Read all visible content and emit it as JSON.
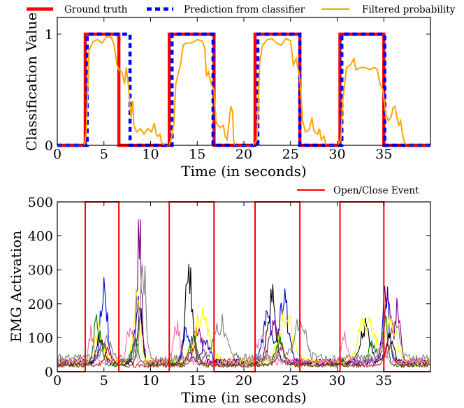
{
  "chart_data": [
    {
      "type": "line",
      "title": "",
      "xlabel": "Time (in seconds)",
      "ylabel": "Classification Value",
      "xlim": [
        0,
        40
      ],
      "ylim": [
        0,
        1.15
      ],
      "xticks": [
        0,
        5,
        10,
        15,
        20,
        25,
        30,
        35
      ],
      "yticks": [
        0,
        1
      ],
      "grid": false,
      "legend_placement": "top, above plot, horizontal",
      "series": [
        {
          "name": "Ground truth",
          "color": "#ff0000",
          "style": "solid-thick",
          "points": [
            [
              0,
              0
            ],
            [
              3.0,
              0
            ],
            [
              3.0,
              1
            ],
            [
              6.6,
              1
            ],
            [
              6.6,
              0
            ],
            [
              12.0,
              0
            ],
            [
              12.0,
              1
            ],
            [
              16.8,
              1
            ],
            [
              16.8,
              0
            ],
            [
              21.2,
              0
            ],
            [
              21.2,
              1
            ],
            [
              26.0,
              1
            ],
            [
              26.0,
              0
            ],
            [
              30.3,
              0
            ],
            [
              30.3,
              1
            ],
            [
              35.0,
              1
            ],
            [
              35.0,
              0
            ],
            [
              40,
              0
            ]
          ]
        },
        {
          "name": "Prediction from classifier",
          "color": "#0000ff",
          "style": "dashed-thick",
          "points": [
            [
              0,
              0
            ],
            [
              3.2,
              0
            ],
            [
              3.2,
              1
            ],
            [
              7.8,
              1
            ],
            [
              7.8,
              0
            ],
            [
              12.3,
              0
            ],
            [
              12.3,
              1
            ],
            [
              16.7,
              1
            ],
            [
              16.7,
              0
            ],
            [
              21.5,
              0
            ],
            [
              21.5,
              1
            ],
            [
              26.0,
              1
            ],
            [
              26.0,
              0
            ],
            [
              30.5,
              0
            ],
            [
              30.5,
              1
            ],
            [
              35.1,
              1
            ],
            [
              35.1,
              0
            ],
            [
              40,
              0
            ]
          ]
        },
        {
          "name": "Filtered probability",
          "color": "#ffa500",
          "style": "solid",
          "points": [
            [
              0,
              0
            ],
            [
              2.9,
              0
            ],
            [
              3.1,
              0.1
            ],
            [
              3.4,
              0.85
            ],
            [
              3.8,
              0.93
            ],
            [
              4.3,
              0.95
            ],
            [
              4.8,
              0.92
            ],
            [
              5.3,
              0.98
            ],
            [
              5.8,
              0.97
            ],
            [
              6.1,
              0.9
            ],
            [
              6.4,
              0.72
            ],
            [
              6.6,
              0.68
            ],
            [
              6.9,
              0.66
            ],
            [
              7.1,
              0.6
            ],
            [
              7.2,
              0.55
            ],
            [
              7.4,
              0.7
            ],
            [
              7.6,
              0.55
            ],
            [
              7.9,
              0.25
            ],
            [
              8.1,
              0.4
            ],
            [
              8.2,
              0.18
            ],
            [
              8.5,
              0.12
            ],
            [
              8.9,
              0.15
            ],
            [
              9.3,
              0.1
            ],
            [
              9.7,
              0.15
            ],
            [
              10.1,
              0.12
            ],
            [
              10.4,
              0.2
            ],
            [
              10.6,
              0.1
            ],
            [
              10.8,
              0.08
            ],
            [
              11.0,
              0.1
            ],
            [
              11.2,
              0.02
            ],
            [
              11.5,
              0
            ],
            [
              12.0,
              0
            ],
            [
              12.2,
              0.05
            ],
            [
              12.5,
              0.2
            ],
            [
              12.7,
              0.55
            ],
            [
              13.0,
              0.66
            ],
            [
              13.2,
              0.72
            ],
            [
              13.5,
              0.9
            ],
            [
              13.8,
              0.92
            ],
            [
              14.4,
              0.92
            ],
            [
              15.0,
              0.95
            ],
            [
              15.5,
              0.94
            ],
            [
              15.8,
              0.88
            ],
            [
              16.0,
              0.62
            ],
            [
              16.2,
              0.66
            ],
            [
              16.5,
              0.55
            ],
            [
              16.8,
              0.5
            ],
            [
              17.0,
              0.22
            ],
            [
              17.2,
              0.18
            ],
            [
              17.5,
              0.16
            ],
            [
              17.8,
              0.18
            ],
            [
              18.0,
              0.08
            ],
            [
              18.2,
              0.05
            ],
            [
              18.4,
              0.2
            ],
            [
              18.6,
              0.35
            ],
            [
              18.8,
              0.3
            ],
            [
              18.9,
              0.05
            ],
            [
              19.0,
              0
            ],
            [
              21.0,
              0
            ],
            [
              21.4,
              0.05
            ],
            [
              21.7,
              0.75
            ],
            [
              22.0,
              0.9
            ],
            [
              22.5,
              0.95
            ],
            [
              23.0,
              0.96
            ],
            [
              23.5,
              0.92
            ],
            [
              24.0,
              0.9
            ],
            [
              24.5,
              0.96
            ],
            [
              25.0,
              0.94
            ],
            [
              25.3,
              0.72
            ],
            [
              25.6,
              0.78
            ],
            [
              26.0,
              0.6
            ],
            [
              26.3,
              0.22
            ],
            [
              26.6,
              0.12
            ],
            [
              27.0,
              0.14
            ],
            [
              27.3,
              0.25
            ],
            [
              27.5,
              0.13
            ],
            [
              27.9,
              0.1
            ],
            [
              28.1,
              0.15
            ],
            [
              28.3,
              0.05
            ],
            [
              28.6,
              0.08
            ],
            [
              28.8,
              0
            ],
            [
              29.0,
              0
            ],
            [
              30.0,
              0
            ],
            [
              30.4,
              0.05
            ],
            [
              30.6,
              0.4
            ],
            [
              31.0,
              0.7
            ],
            [
              31.4,
              0.72
            ],
            [
              31.8,
              0.78
            ],
            [
              32.0,
              0.68
            ],
            [
              32.5,
              0.7
            ],
            [
              33.0,
              0.7
            ],
            [
              33.5,
              0.68
            ],
            [
              34.0,
              0.7
            ],
            [
              34.3,
              0.68
            ],
            [
              34.6,
              0.55
            ],
            [
              34.9,
              0.5
            ],
            [
              35.2,
              0.28
            ],
            [
              35.5,
              0.22
            ],
            [
              35.8,
              0.26
            ],
            [
              36.0,
              0.34
            ],
            [
              36.2,
              0.35
            ],
            [
              36.4,
              0.25
            ],
            [
              36.6,
              0.18
            ],
            [
              36.8,
              0.22
            ],
            [
              37.0,
              0.1
            ],
            [
              37.2,
              0.03
            ],
            [
              37.4,
              0
            ],
            [
              40,
              0
            ]
          ]
        }
      ]
    },
    {
      "type": "line",
      "title": "",
      "xlabel": "Time (in seconds)",
      "ylabel": "EMG Activation",
      "xlim": [
        0,
        40
      ],
      "ylim": [
        0,
        500
      ],
      "xticks": [
        0,
        5,
        10,
        15,
        20,
        25,
        30,
        35
      ],
      "yticks": [
        0,
        100,
        200,
        300,
        400,
        500
      ],
      "grid": false,
      "legend_placement": "top-right, above plot",
      "event_series": {
        "name": "Open/Close Event",
        "color": "#ff0000",
        "low": 0,
        "high": 500,
        "transitions": [
          3.0,
          6.6,
          12.0,
          16.8,
          21.2,
          26.0,
          30.3,
          35.0
        ]
      },
      "emg_channels": [
        {
          "color": "#0000cd",
          "base": 28,
          "peaks": [
            [
              5.0,
              340,
              0.45
            ],
            [
              8.7,
              220,
              0.5
            ],
            [
              13.8,
              120,
              0.5
            ],
            [
              16.0,
              80,
              0.6
            ],
            [
              22.5,
              190,
              0.6
            ],
            [
              24.3,
              230,
              0.7
            ],
            [
              35.2,
              270,
              0.5
            ]
          ]
        },
        {
          "color": "#000000",
          "base": 25,
          "peaks": [
            [
              4.6,
              110,
              0.5
            ],
            [
              8.9,
              180,
              0.4
            ],
            [
              14.1,
              340,
              0.5
            ],
            [
              23.0,
              250,
              0.6
            ],
            [
              33.0,
              130,
              0.8
            ],
            [
              35.6,
              100,
              0.6
            ]
          ]
        },
        {
          "color": "#800080",
          "base": 30,
          "peaks": [
            [
              4.8,
              80,
              0.5
            ],
            [
              8.8,
              480,
              0.35
            ],
            [
              15.0,
              130,
              0.7
            ],
            [
              23.3,
              130,
              0.8
            ],
            [
              35.4,
              250,
              0.5
            ],
            [
              36.5,
              220,
              0.4
            ]
          ]
        },
        {
          "color": "#ffff00",
          "base": 30,
          "peaks": [
            [
              4.5,
              120,
              0.6
            ],
            [
              8.5,
              250,
              0.5
            ],
            [
              15.5,
              160,
              1.2
            ],
            [
              24.5,
              170,
              1.0
            ],
            [
              33.2,
              170,
              1.2
            ],
            [
              35.8,
              160,
              0.8
            ]
          ]
        },
        {
          "color": "#808080",
          "base": 40,
          "peaks": [
            [
              5.3,
              70,
              0.6
            ],
            [
              9.2,
              370,
              0.4
            ],
            [
              17.5,
              130,
              0.9
            ],
            [
              26.0,
              150,
              0.8
            ],
            [
              36.2,
              160,
              0.6
            ]
          ]
        },
        {
          "color": "#008000",
          "base": 20,
          "peaks": [
            [
              4.3,
              170,
              0.5
            ],
            [
              8.3,
              90,
              0.5
            ],
            [
              14.5,
              90,
              0.6
            ],
            [
              23.8,
              90,
              0.6
            ],
            [
              33.8,
              70,
              0.7
            ],
            [
              35.1,
              180,
              0.4
            ]
          ]
        },
        {
          "color": "#ff69b4",
          "base": 28,
          "peaks": [
            [
              3.6,
              110,
              0.4
            ],
            [
              7.8,
              140,
              0.5
            ],
            [
              12.8,
              130,
              0.5
            ],
            [
              21.8,
              90,
              0.6
            ],
            [
              30.8,
              90,
              0.5
            ],
            [
              34.8,
              90,
              0.5
            ]
          ]
        },
        {
          "color": "#b22222",
          "base": 18,
          "peaks": [
            [
              5.5,
              60,
              0.6
            ],
            [
              14.8,
              60,
              0.6
            ],
            [
              24.0,
              60,
              0.7
            ],
            [
              35.5,
              80,
              0.6
            ]
          ]
        }
      ]
    }
  ]
}
